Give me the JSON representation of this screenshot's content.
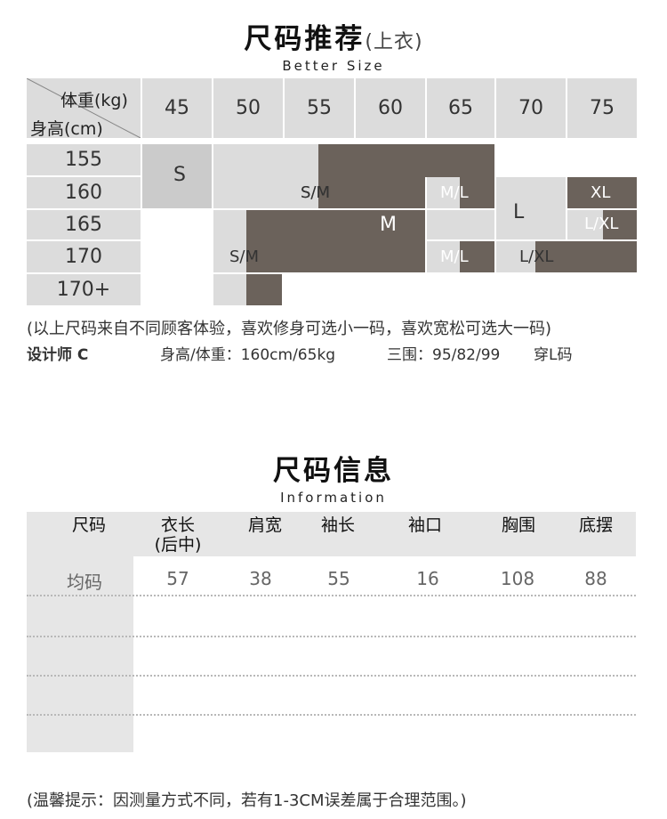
{
  "size_recommend": {
    "title": "尺码推荐",
    "title_paren": "(上衣)",
    "subtitle": "Better Size",
    "header_weight": "体重(kg)",
    "header_height": "身高(cm)",
    "weights": [
      "45",
      "50",
      "55",
      "60",
      "65",
      "70",
      "75"
    ],
    "heights": [
      "155",
      "160",
      "165",
      "170",
      "170+"
    ],
    "labels": {
      "s": "S",
      "sm1": "S/M",
      "ml1": "M/L",
      "xl": "XL",
      "l": "L",
      "m": "M",
      "lxl1": "L/XL",
      "sm2": "S/M",
      "ml2": "M/L",
      "lxl2": "L/XL"
    },
    "note": "(以上尺码来自不同顾客体验，喜欢修身可选小一码，喜欢宽松可选大一码)",
    "designer_name": "设计师 C",
    "designer_hw": "身高/体重：160cm/65kg",
    "designer_measure": "三围：95/82/99",
    "designer_size": "穿L码"
  },
  "size_info": {
    "title": "尺码信息",
    "subtitle": "Information",
    "columns": [
      "尺码",
      "衣长\n(后中)",
      "肩宽",
      "袖长",
      "袖口",
      "胸围",
      "底摆"
    ],
    "row": [
      "均码",
      "57",
      "38",
      "55",
      "16",
      "108",
      "88"
    ]
  },
  "footer_note": "(温馨提示：因测量方式不同，若有1-3CM误差属于合理范围。)",
  "colors": {
    "light": "#dcdcdc",
    "mid": "#cbcbcb",
    "dark": "#6b625b"
  }
}
